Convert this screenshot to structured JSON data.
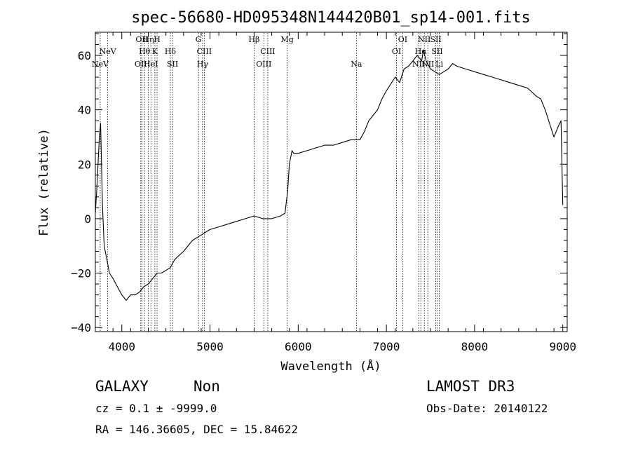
{
  "chart_data": {
    "type": "line",
    "title": "spec-56680-HD095348N144420B01_sp14-001.fits",
    "xlabel": "Wavelength (Å)",
    "ylabel": "Flux (relative)",
    "xlim": [
      3700,
      9050
    ],
    "ylim": [
      -41.5,
      68.5
    ],
    "xticks": [
      4000,
      5000,
      6000,
      7000,
      8000,
      9000
    ],
    "yticks": [
      -40,
      -20,
      0,
      20,
      40,
      60
    ],
    "grid": false,
    "legend": "none",
    "series": [
      {
        "x": [
          3700,
          3715,
          3730,
          3745,
          3760,
          3780,
          3800,
          3830,
          3860,
          3900,
          3950,
          4000,
          4050,
          4100,
          4150,
          4200,
          4250,
          4300,
          4350,
          4400,
          4450,
          4500,
          4550,
          4600,
          4700,
          4800,
          4900,
          5000,
          5100,
          5200,
          5300,
          5400,
          5500,
          5600,
          5700,
          5800,
          5850,
          5880,
          5900,
          5930,
          5950,
          6000,
          6100,
          6200,
          6300,
          6400,
          6500,
          6600,
          6700,
          6750,
          6800,
          6850,
          6900,
          6950,
          7000,
          7100,
          7150,
          7200,
          7250,
          7300,
          7350,
          7400,
          7420,
          7450,
          7500,
          7550,
          7600,
          7650,
          7700,
          7750,
          7800,
          7900,
          8000,
          8100,
          8200,
          8300,
          8400,
          8500,
          8600,
          8700,
          8750,
          8800,
          8850,
          8900,
          8950,
          8980,
          9000
        ],
        "y": [
          2,
          10,
          20,
          30,
          35,
          5,
          -10,
          -15,
          -20,
          -22,
          -25,
          -28,
          -30,
          -28,
          -28,
          -27,
          -25,
          -24,
          -22,
          -20,
          -20,
          -19,
          -18,
          -15,
          -12,
          -8,
          -6,
          -4,
          -3,
          -2,
          -1,
          0,
          1,
          0,
          0,
          1,
          2,
          10,
          20,
          25,
          24,
          24,
          25,
          26,
          27,
          27,
          28,
          29,
          29,
          32,
          36,
          38,
          40,
          44,
          47,
          52,
          50,
          55,
          56,
          58,
          60,
          58,
          62,
          58,
          55,
          54,
          53,
          54,
          55,
          57,
          56,
          55,
          54,
          53,
          52,
          51,
          50,
          49,
          48,
          45,
          44,
          40,
          35,
          30,
          34,
          36,
          5
        ]
      }
    ],
    "lines": [
      {
        "name": "NeV",
        "x": 3755,
        "row": 2
      },
      {
        "name": "NeV",
        "x": 3840,
        "row": 1
      },
      {
        "name": "OII",
        "x": 4227,
        "row": 0
      },
      {
        "name": "Hη",
        "x": 4300,
        "row": 0
      },
      {
        "name": "Hθ",
        "x": 4258,
        "row": 1
      },
      {
        "name": "OII",
        "x": 4215,
        "row": 2
      },
      {
        "name": "H",
        "x": 4400,
        "row": 0
      },
      {
        "name": "K",
        "x": 4375,
        "row": 1
      },
      {
        "name": "HeI",
        "x": 4330,
        "row": 2
      },
      {
        "name": "Hδ",
        "x": 4550,
        "row": 1
      },
      {
        "name": "SII",
        "x": 4575,
        "row": 2
      },
      {
        "name": "G",
        "x": 4870,
        "row": 0
      },
      {
        "name": "CIII",
        "x": 4935,
        "row": 1
      },
      {
        "name": "Hγ",
        "x": 4915,
        "row": 2
      },
      {
        "name": "Hβ",
        "x": 5500,
        "row": 0
      },
      {
        "name": "CIII",
        "x": 5655,
        "row": 1
      },
      {
        "name": "OIII",
        "x": 5610,
        "row": 2
      },
      {
        "name": "Mg",
        "x": 5875,
        "row": 0
      },
      {
        "name": "Na",
        "x": 6660,
        "row": 2
      },
      {
        "name": "OI",
        "x": 7185,
        "row": 0
      },
      {
        "name": "OI",
        "x": 7115,
        "row": 1
      },
      {
        "name": "NII",
        "x": 7430,
        "row": 0
      },
      {
        "name": "Hα",
        "x": 7390,
        "row": 1
      },
      {
        "name": "NII",
        "x": 7365,
        "row": 2
      },
      {
        "name": "SII",
        "x": 7560,
        "row": 0
      },
      {
        "name": "SII",
        "x": 7575,
        "row": 1
      },
      {
        "name": "NII",
        "x": 7470,
        "row": 2
      },
      {
        "name": "Li",
        "x": 7600,
        "row": 2
      }
    ]
  },
  "info": {
    "class": "GALAXY",
    "subclass": "Non",
    "survey": "LAMOST DR3",
    "cz": "cz = 0.1 ± -9999.0",
    "obs_date": "Obs-Date: 20140122",
    "radec": "RA = 146.36605, DEC =  15.84622"
  }
}
